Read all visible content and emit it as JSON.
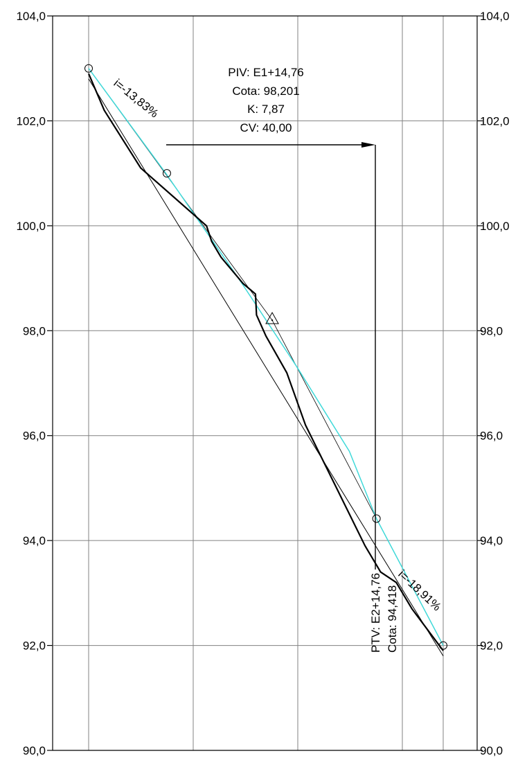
{
  "chart_data": {
    "type": "line",
    "ylim": [
      90,
      104
    ],
    "y_ticks": [
      "104,0",
      "102,0",
      "100,0",
      "98,0",
      "96,0",
      "94,0",
      "92,0",
      "90,0"
    ],
    "y_tick_values": [
      104,
      102,
      100,
      98,
      96,
      94,
      92,
      90
    ],
    "station_range": [
      0,
      34
    ],
    "grid": true,
    "series": [
      {
        "role": "terrain",
        "points": [
          [
            0.0,
            102.9
          ],
          [
            1.5,
            102.2
          ],
          [
            5.0,
            101.1
          ],
          [
            11.3,
            100.0
          ],
          [
            11.8,
            99.7
          ],
          [
            12.7,
            99.4
          ],
          [
            14.8,
            98.9
          ],
          [
            16.0,
            98.7
          ],
          [
            16.1,
            98.3
          ],
          [
            17.0,
            97.9
          ],
          [
            19.0,
            97.2
          ],
          [
            20.8,
            96.2
          ],
          [
            26.5,
            93.9
          ],
          [
            28.0,
            93.4
          ],
          [
            29.5,
            93.2
          ],
          [
            31.0,
            92.7
          ],
          [
            34.0,
            91.9
          ]
        ]
      },
      {
        "role": "grade-line",
        "points": [
          [
            0.0,
            103.0
          ],
          [
            17.6,
            98.2
          ],
          [
            34.0,
            92.0
          ]
        ]
      },
      {
        "role": "vertical-curve",
        "points": [
          [
            0.0,
            103.0
          ],
          [
            7.4,
            101.0
          ],
          [
            14.7,
            98.9
          ],
          [
            20.0,
            97.3
          ],
          [
            25.0,
            95.7
          ],
          [
            27.6,
            94.418
          ],
          [
            34.0,
            92.0
          ]
        ]
      },
      {
        "role": "terrain-trend",
        "points": [
          [
            0.0,
            102.8
          ],
          [
            34.0,
            91.8
          ]
        ]
      }
    ],
    "markers": [
      {
        "symbol": "circle",
        "x": 0.0,
        "y": 103.0
      },
      {
        "symbol": "circle",
        "x": 7.5,
        "y": 101.0
      },
      {
        "symbol": "triangle",
        "x": 17.6,
        "y": 98.2
      },
      {
        "symbol": "circle",
        "x": 27.6,
        "y": 94.418
      },
      {
        "symbol": "circle",
        "x": 34.0,
        "y": 92.0
      }
    ],
    "annotations": {
      "slope_left": "i=-13,83%",
      "slope_right": "i=-18,91%",
      "piv": [
        "PIV: E1+14,76",
        "Cota: 98,201",
        "K: 7,87",
        "CV: 40,00"
      ],
      "ptv": [
        "PTV: E2+14,76",
        "Cota: 94,418"
      ]
    },
    "colors": {
      "grid": "#808080",
      "terrain": "#000000",
      "grade_line": "#000000",
      "vertical_curve": "#3fd9d9"
    }
  }
}
